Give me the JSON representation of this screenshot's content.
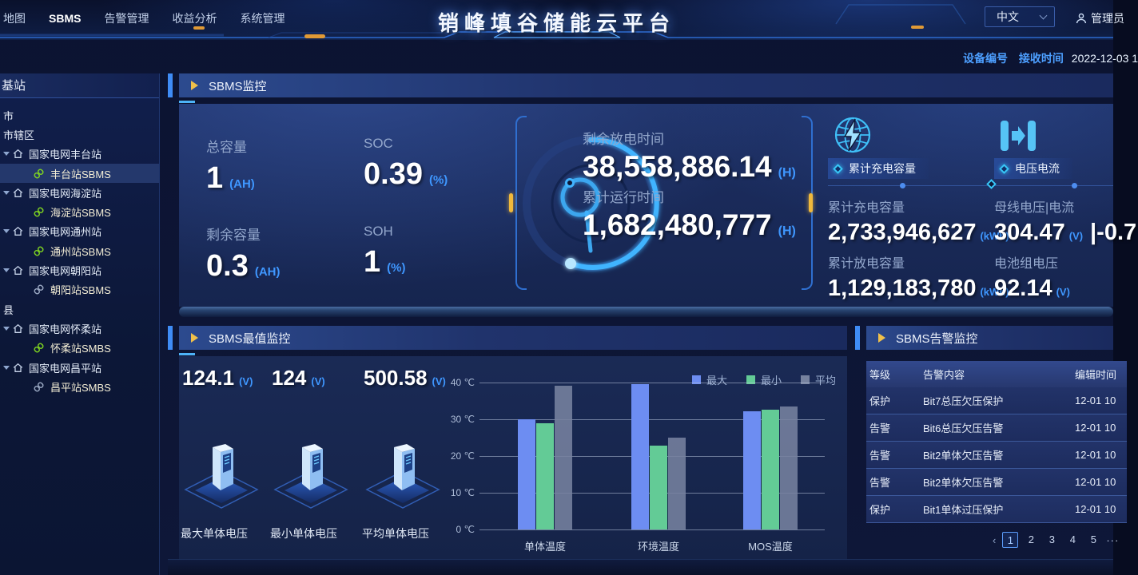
{
  "header": {
    "title": "销峰填谷储能云平台",
    "nav": [
      {
        "key": "map",
        "label": "地图"
      },
      {
        "key": "sbms",
        "label": "SBMS",
        "active": true
      },
      {
        "key": "alarm-management",
        "label": "告警管理"
      },
      {
        "key": "revenue-analysis",
        "label": "收益分析"
      },
      {
        "key": "system-management",
        "label": "系统管理"
      }
    ],
    "lang": "中文",
    "user": "管理员"
  },
  "meta": {
    "device_label": "设备编号",
    "time_label": "接收时间",
    "time_value": "2022-12-03 1"
  },
  "sidebar": {
    "title": "基站",
    "tree": [
      {
        "type": "region",
        "label": "市"
      },
      {
        "type": "region",
        "label": "市辖区"
      },
      {
        "type": "station",
        "label": "国家电网丰台站"
      },
      {
        "type": "device",
        "label": "丰台站SBMS",
        "link_state": "online",
        "selected": true
      },
      {
        "type": "station",
        "label": "国家电网海淀站"
      },
      {
        "type": "device",
        "label": "海淀站SBMS",
        "link_state": "online"
      },
      {
        "type": "station",
        "label": "国家电网通州站"
      },
      {
        "type": "device",
        "label": "通州站SBMS",
        "link_state": "online"
      },
      {
        "type": "station",
        "label": "国家电网朝阳站"
      },
      {
        "type": "device",
        "label": "朝阳站SBMS",
        "link_state": "offline"
      },
      {
        "type": "region",
        "label": "县"
      },
      {
        "type": "station",
        "label": "国家电网怀柔站"
      },
      {
        "type": "device",
        "label": "怀柔站SMBS",
        "link_state": "online"
      },
      {
        "type": "station",
        "label": "国家电网昌平站"
      },
      {
        "type": "device",
        "label": "昌平站SMBS",
        "link_state": "offline"
      }
    ]
  },
  "monitor": {
    "title": "SBMS监控",
    "stats": [
      {
        "label": "总容量",
        "value": "1",
        "unit": "(AH)"
      },
      {
        "label": "SOC",
        "value": "0.39",
        "unit": "(%)"
      },
      {
        "label": "剩余容量",
        "value": "0.3",
        "unit": "(AH)"
      },
      {
        "label": "SOH",
        "value": "1",
        "unit": "(%)"
      }
    ],
    "time_stats": [
      {
        "label": "剩余放电时间",
        "value": "38,558,886.14",
        "unit": "(H)"
      },
      {
        "label": "累计运行时间",
        "value": "1,682,480,777",
        "unit": "(H)"
      }
    ],
    "badges": [
      "累计充电容量",
      "电压电流"
    ],
    "energy_stats": [
      {
        "label": "累计充电容量",
        "value": "2,733,946,627",
        "unit": "(kWh)"
      },
      {
        "label": "母线电压|电流",
        "value": "304.47",
        "unit": "(V)",
        "extra": "|-0.7"
      },
      {
        "label": "累计放电容量",
        "value": "1,129,183,780",
        "unit": "(kWh)"
      },
      {
        "label": "电池组电压",
        "value": "92.14",
        "unit": "(V)"
      }
    ]
  },
  "extremes": {
    "title": "SBMS最值监控",
    "voltages": [
      {
        "value": "124.1",
        "unit": "(V)",
        "label": "最大单体电压"
      },
      {
        "value": "124",
        "unit": "(V)",
        "label": "最小单体电压"
      },
      {
        "value": "500.58",
        "unit": "(V)",
        "label": "平均单体电压"
      }
    ]
  },
  "chart_data": {
    "type": "bar",
    "title": "",
    "categories": [
      "单体温度",
      "环境温度",
      "MOS温度"
    ],
    "series": [
      {
        "name": "最大",
        "color": "#6d8df2",
        "values": [
          30,
          39.6,
          32.2
        ]
      },
      {
        "name": "最小",
        "color": "#63cb96",
        "values": [
          29,
          22.8,
          32.7
        ]
      },
      {
        "name": "平均",
        "color": "#76829f",
        "values": [
          39.2,
          25,
          33.4
        ]
      }
    ],
    "ylabel": "℃",
    "ylim": [
      0,
      40
    ],
    "yticks": [
      "0 ℃",
      "10 ℃",
      "20 ℃",
      "30 ℃",
      "40 ℃"
    ],
    "legend_position": "top-right",
    "grid": true
  },
  "alarms": {
    "title": "SBMS告警监控",
    "columns": [
      "等级",
      "告警内容",
      "编辑时间"
    ],
    "rows": [
      [
        "保护",
        "Bit7总压欠压保护",
        "12-01 10"
      ],
      [
        "告警",
        "Bit6总压欠压告警",
        "12-01 10"
      ],
      [
        "告警",
        "Bit2单体欠压告警",
        "12-01 10"
      ],
      [
        "告警",
        "Bit2单体欠压告警",
        "12-01 10"
      ],
      [
        "保护",
        "Bit1单体过压保护",
        "12-01 10"
      ]
    ],
    "pagination": {
      "prev": "‹",
      "pages": [
        "1",
        "2",
        "3",
        "4",
        "5"
      ],
      "active": "1",
      "more": "···"
    }
  },
  "colors": {
    "accent_blue": "#3f8cf5",
    "unit_blue": "#3f97ff",
    "play_yellow": "#f0c04a",
    "tick_orange": "#e09a36",
    "online_green": "#7ed321",
    "offline_gray": "#9aa8c2",
    "arc_cyan": "#41b4ff"
  }
}
